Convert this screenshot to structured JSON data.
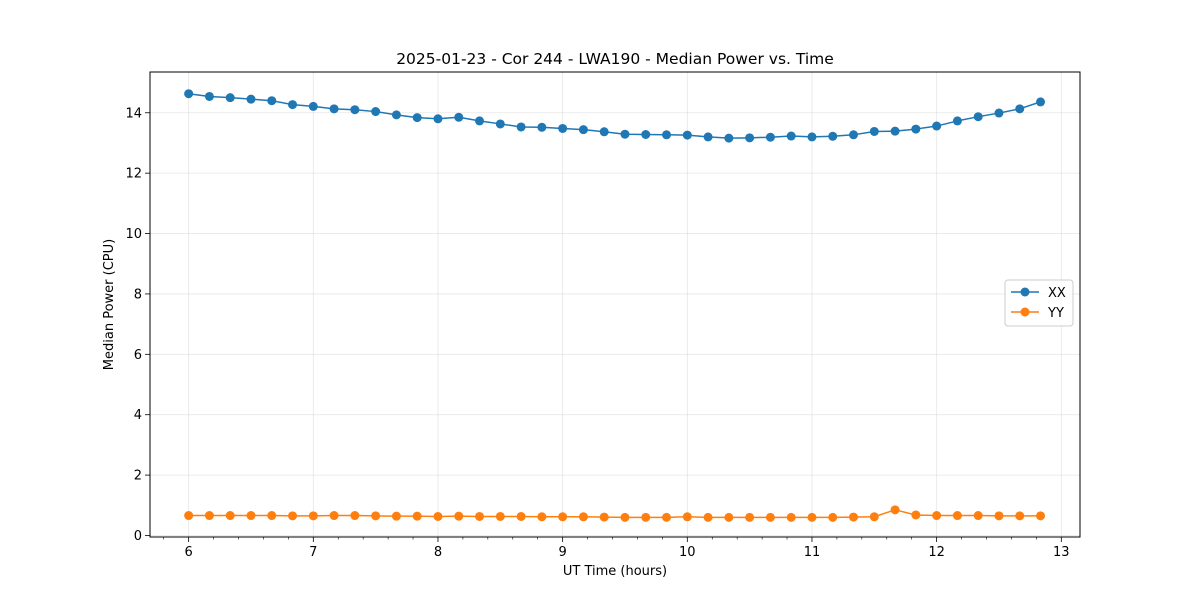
{
  "chart_data": {
    "type": "line",
    "title": "2025-01-23 - Cor 244 - LWA190 - Median Power vs. Time",
    "xlabel": "UT Time (hours)",
    "ylabel": "Median Power (CPU)",
    "xlim": [
      5.69,
      13.15
    ],
    "ylim": [
      -0.05,
      15.35
    ],
    "xticks": [
      6,
      7,
      8,
      9,
      10,
      11,
      12,
      13
    ],
    "xtick_labels": [
      "6",
      "7",
      "8",
      "9",
      "10",
      "11",
      "12",
      "13"
    ],
    "yticks": [
      0,
      2,
      4,
      6,
      8,
      10,
      12,
      14
    ],
    "ytick_labels": [
      "0",
      "2",
      "4",
      "6",
      "8",
      "10",
      "12",
      "14"
    ],
    "grid": true,
    "legend_position": "center-right",
    "x": [
      6.0,
      6.1667,
      6.3333,
      6.5,
      6.6667,
      6.8333,
      7.0,
      7.1667,
      7.3333,
      7.5,
      7.6667,
      7.8333,
      8.0,
      8.1667,
      8.3333,
      8.5,
      8.6667,
      8.8333,
      9.0,
      9.1667,
      9.3333,
      9.5,
      9.6667,
      9.8333,
      10.0,
      10.1667,
      10.3333,
      10.5,
      10.6667,
      10.8333,
      11.0,
      11.1667,
      11.3333,
      11.5,
      11.6667,
      11.8333,
      12.0,
      12.1667,
      12.3333,
      12.5,
      12.6667,
      12.8333
    ],
    "series": [
      {
        "name": "XX",
        "color": "#1f77b4",
        "values": [
          14.63,
          14.54,
          14.5,
          14.45,
          14.4,
          14.27,
          14.21,
          14.13,
          14.1,
          14.04,
          13.93,
          13.84,
          13.8,
          13.85,
          13.73,
          13.63,
          13.53,
          13.52,
          13.48,
          13.44,
          13.37,
          13.29,
          13.28,
          13.27,
          13.26,
          13.2,
          13.16,
          13.17,
          13.19,
          13.23,
          13.2,
          13.22,
          13.27,
          13.38,
          13.39,
          13.46,
          13.56,
          13.73,
          13.87,
          13.99,
          14.13,
          14.36
        ]
      },
      {
        "name": "YY",
        "color": "#ff7f0e",
        "values": [
          0.66,
          0.66,
          0.66,
          0.66,
          0.66,
          0.65,
          0.65,
          0.66,
          0.66,
          0.65,
          0.64,
          0.64,
          0.63,
          0.64,
          0.63,
          0.63,
          0.63,
          0.62,
          0.62,
          0.62,
          0.61,
          0.6,
          0.6,
          0.6,
          0.62,
          0.6,
          0.6,
          0.6,
          0.6,
          0.6,
          0.6,
          0.6,
          0.61,
          0.62,
          0.85,
          0.68,
          0.66,
          0.66,
          0.66,
          0.65,
          0.65,
          0.65
        ]
      }
    ]
  }
}
